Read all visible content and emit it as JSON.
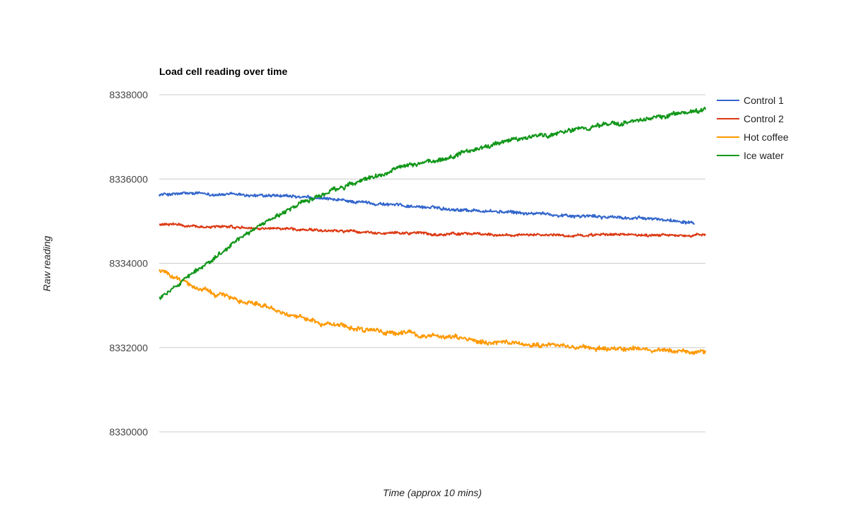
{
  "chart_data": {
    "type": "line",
    "title": "Load cell reading over time",
    "xlabel": "Time (approx 10 mins)",
    "ylabel": "Raw reading",
    "ylim": [
      8330000,
      8338000
    ],
    "yticks": [
      "8338000",
      "8336000",
      "8334000",
      "8332000",
      "8330000"
    ],
    "grid": true,
    "legend_position": "right",
    "x": [
      0,
      0.05,
      0.1,
      0.15,
      0.2,
      0.25,
      0.3,
      0.35,
      0.4,
      0.45,
      0.5,
      0.55,
      0.6,
      0.65,
      0.7,
      0.75,
      0.8,
      0.85,
      0.9,
      0.95,
      1.0
    ],
    "series": [
      {
        "name": "Control 1",
        "color": "#3366cc",
        "noise": 40,
        "x_end": 0.98,
        "values": [
          8335630,
          8335650,
          8335640,
          8335620,
          8335590,
          8335570,
          8335520,
          8335470,
          8335420,
          8335370,
          8335320,
          8335280,
          8335240,
          8335200,
          8335170,
          8335140,
          8335110,
          8335080,
          8335050,
          8335010,
          8334980
        ]
      },
      {
        "name": "Control 2",
        "color": "#dc3912",
        "noise": 35,
        "x_end": 1.0,
        "values": [
          8334920,
          8334890,
          8334870,
          8334850,
          8334830,
          8334810,
          8334790,
          8334760,
          8334740,
          8334720,
          8334700,
          8334690,
          8334680,
          8334670,
          8334670,
          8334660,
          8334660,
          8334670,
          8334670,
          8334660,
          8334660
        ]
      },
      {
        "name": "Hot coffee",
        "color": "#ff9900",
        "noise": 60,
        "x_end": 1.0,
        "values": [
          8333830,
          8333550,
          8333300,
          8333080,
          8332930,
          8332770,
          8332580,
          8332470,
          8332390,
          8332330,
          8332280,
          8332220,
          8332140,
          8332070,
          8332040,
          8332010,
          8331980,
          8331970,
          8331950,
          8331920,
          8331920
        ]
      },
      {
        "name": "Ice water",
        "color": "#109618",
        "noise": 60,
        "x_end": 1.0,
        "values": [
          8333180,
          8333650,
          8334130,
          8334620,
          8334980,
          8335350,
          8335630,
          8335870,
          8336070,
          8336320,
          8336430,
          8336600,
          8336800,
          8336930,
          8337040,
          8337150,
          8337240,
          8337340,
          8337440,
          8337560,
          8337660
        ]
      }
    ]
  }
}
